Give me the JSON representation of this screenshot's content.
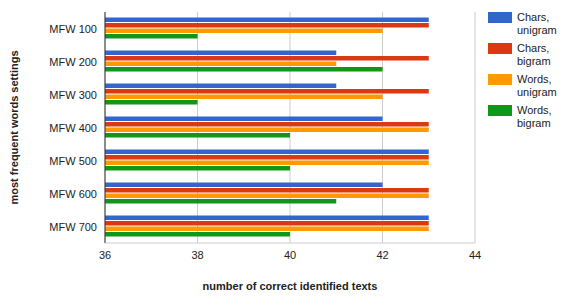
{
  "chart_data": {
    "type": "bar",
    "orientation": "horizontal",
    "x_label": "number of correct identified texts",
    "y_label": "most frequent words settings",
    "categories": [
      "MFW 100",
      "MFW 200",
      "MFW 300",
      "MFW 400",
      "MFW 500",
      "MFW 600",
      "MFW 700"
    ],
    "series": [
      {
        "name": "Chars, unigram",
        "color": "#3366cc",
        "values": [
          43,
          41,
          41,
          42,
          43,
          42,
          43
        ]
      },
      {
        "name": "Chars, bigram",
        "color": "#dc3912",
        "values": [
          43,
          43,
          43,
          43,
          43,
          43,
          43
        ]
      },
      {
        "name": "Words, unigram",
        "color": "#ff9900",
        "values": [
          42,
          41,
          42,
          43,
          43,
          43,
          43
        ]
      },
      {
        "name": "Words, bigram",
        "color": "#109618",
        "values": [
          38,
          42,
          38,
          40,
          40,
          41,
          40
        ]
      }
    ],
    "xlim": [
      36,
      44
    ],
    "xticks": [
      36,
      38,
      40,
      42,
      44
    ],
    "grid": true,
    "legend": "top-right"
  }
}
